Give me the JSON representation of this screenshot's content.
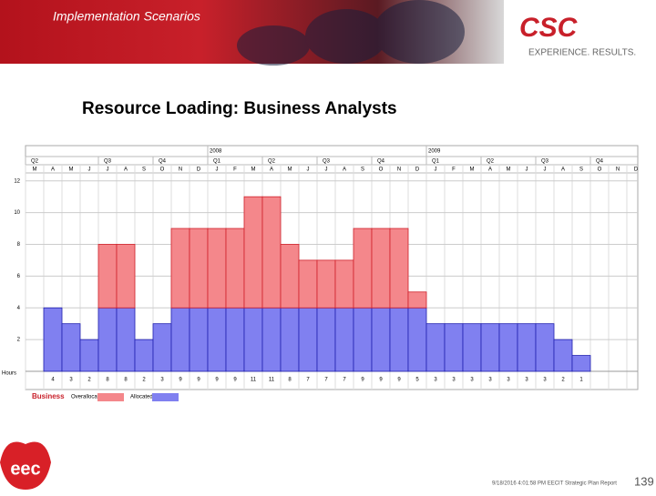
{
  "header": {
    "section": "Implementation Scenarios",
    "logo": "CSC",
    "tagline": "EXPERIENCE. RESULTS."
  },
  "chart_data": {
    "type": "stacked-bar",
    "title": "Resource Loading: Business Analysts",
    "years": [
      "2008",
      "2009"
    ],
    "quarters": [
      "Q2",
      "Q3",
      "Q4",
      "Q1",
      "Q2",
      "Q3",
      "Q4",
      "Q1",
      "Q2",
      "Q3",
      "Q4"
    ],
    "categories": [
      "M",
      "A",
      "M",
      "J",
      "J",
      "A",
      "S",
      "O",
      "N",
      "D",
      "J",
      "F",
      "M",
      "A",
      "M",
      "J",
      "J",
      "A",
      "S",
      "O",
      "N",
      "D",
      "J",
      "F",
      "M",
      "A",
      "M",
      "J",
      "J",
      "A",
      "S",
      "O",
      "N",
      "D"
    ],
    "series": [
      {
        "name": "Allocated",
        "color": "#8080f0",
        "values": [
          null,
          4,
          3,
          2,
          4,
          4,
          2,
          3,
          4,
          4,
          4,
          4,
          4,
          4,
          4,
          4,
          4,
          4,
          4,
          4,
          4,
          4,
          3,
          3,
          3,
          3,
          3,
          3,
          3,
          2,
          1,
          null,
          null,
          null
        ]
      },
      {
        "name": "Overallocated",
        "color": "#f4878b",
        "values": [
          null,
          0,
          0,
          0,
          4,
          4,
          0,
          0,
          5,
          5,
          5,
          5,
          7,
          7,
          4,
          3,
          3,
          3,
          5,
          5,
          5,
          1,
          0,
          0,
          0,
          0,
          0,
          0,
          0,
          0,
          0,
          null,
          null,
          null
        ]
      }
    ],
    "totals": [
      null,
      4,
      3,
      2,
      8,
      8,
      2,
      3,
      9,
      9,
      9,
      9,
      11,
      11,
      8,
      7,
      7,
      7,
      9,
      9,
      9,
      5,
      3,
      3,
      3,
      3,
      3,
      3,
      3,
      2,
      1,
      null,
      null,
      null
    ],
    "legend_title": "Business",
    "y_label": "Hours",
    "ylim": [
      0,
      12.5
    ],
    "yticks": [
      2,
      4,
      6,
      8,
      10,
      12
    ],
    "grid": true
  },
  "footer": {
    "org": "eec",
    "note": "9/18/2016 4:01:58 PM EECIT Strategic Plan Report",
    "page": "139"
  }
}
